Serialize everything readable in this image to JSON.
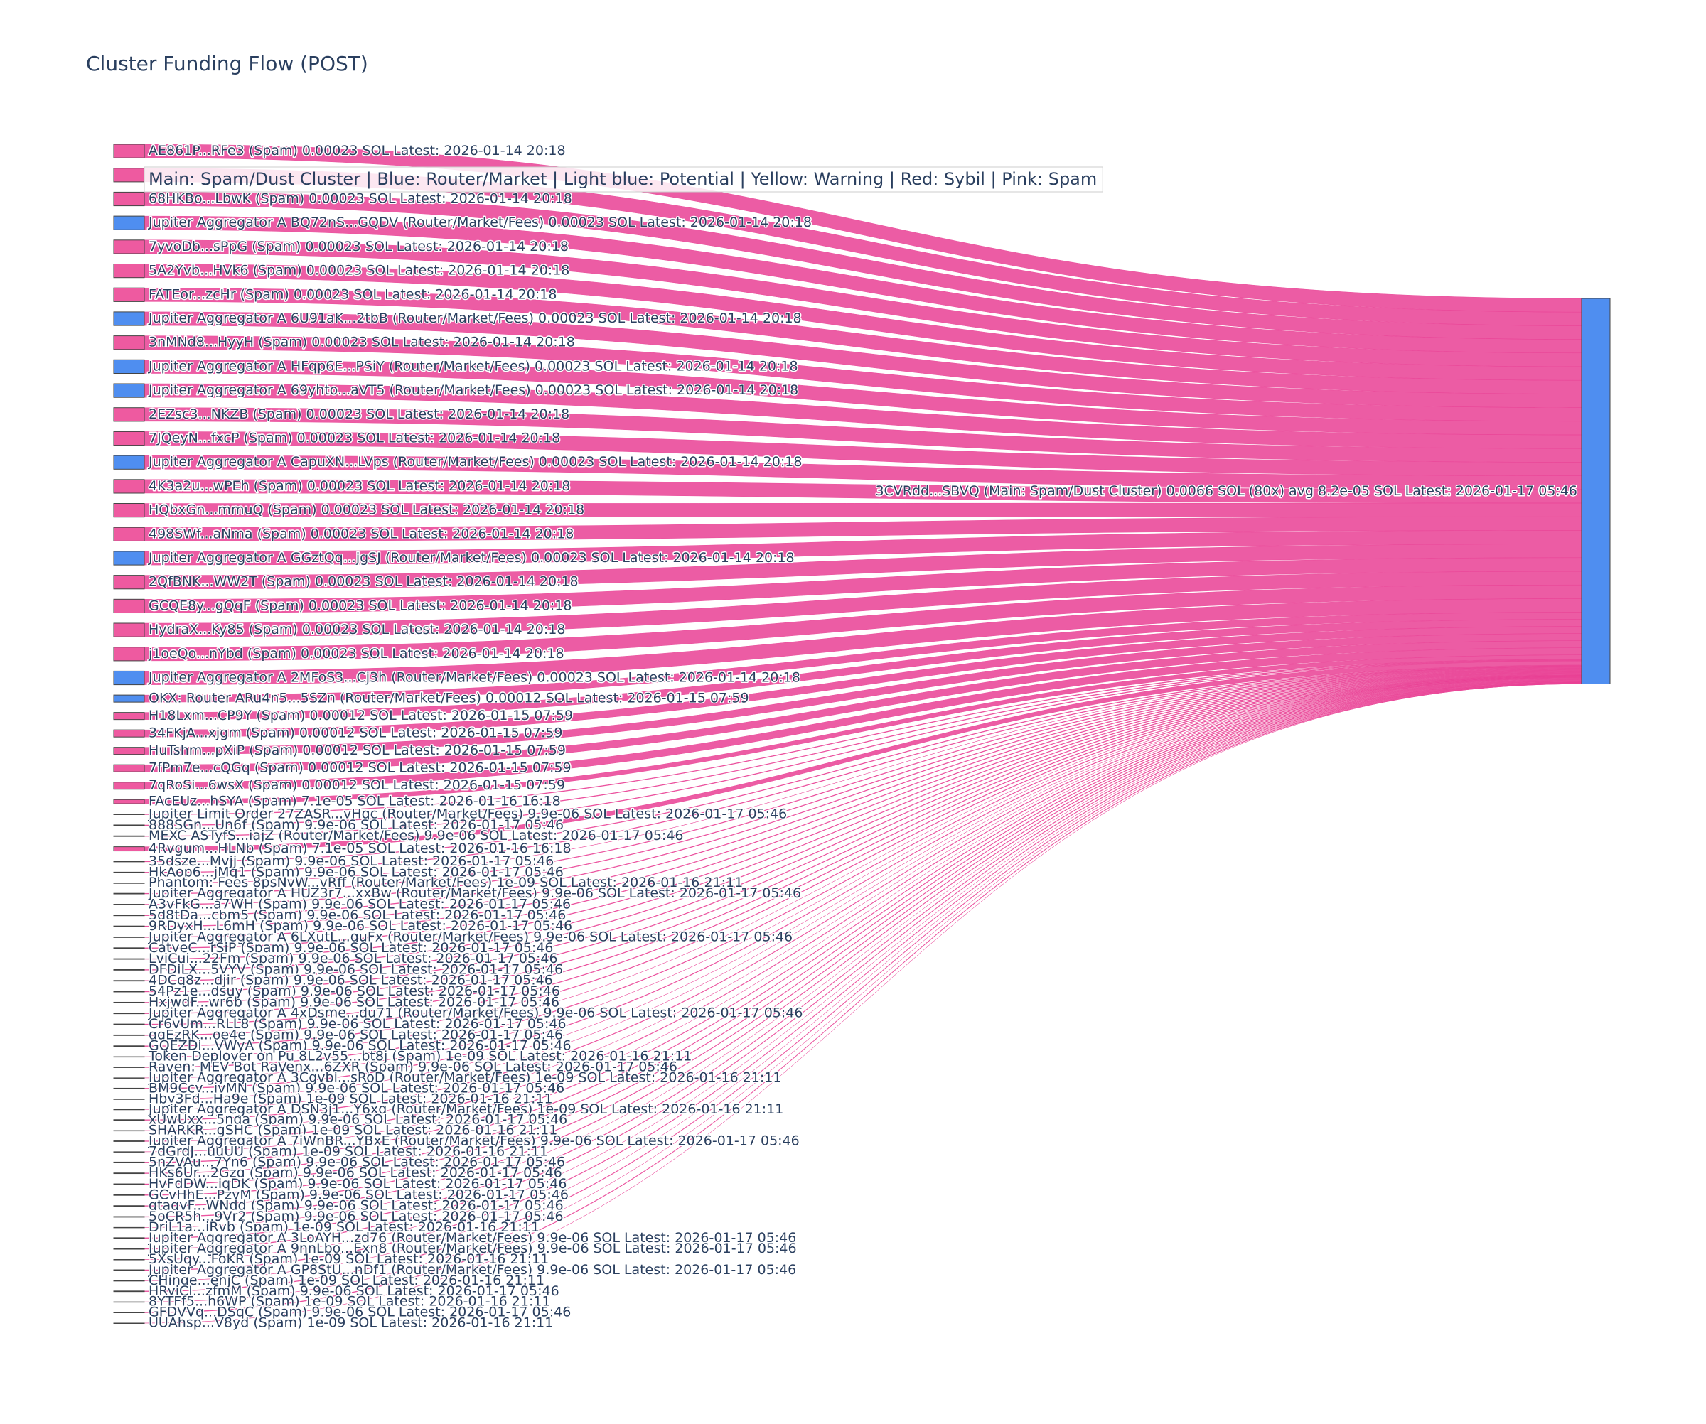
{
  "chart_data": {
    "type": "sankey",
    "title": "Cluster Funding Flow (POST)",
    "annotation": "Main: Spam/Dust Cluster  |  Blue: Router/Market | Light blue: Potential | Yellow: Warning | Red: Sybil | Pink: Spam",
    "link_color": "rgba(233,64,148,0.85)",
    "nodes": [
      {
        "label": "3CVRdd...SBVQ (Main: Spam/Dust Cluster) 0.0066 SOL (80x) avg 8.2e-05 SOL Latest: 2026-01-17 05:46",
        "color": "#4f8ef0"
      },
      {
        "label": "AE861P...RFe3 (Spam) 0.00023 SOL Latest: 2026-01-14 20:18",
        "color": "#ee5aa0"
      },
      {
        "label": null,
        "color": "#ee5aa0"
      },
      {
        "label": "68HKBo...LbwK (Spam) 0.00023 SOL Latest: 2026-01-14 20:18",
        "color": "#ee5aa0"
      },
      {
        "label": "Jupiter Aggregator A BQ72nS...GQDV (Router/Market/Fees) 0.00023 SOL Latest: 2026-01-14 20:18",
        "color": "#4f8ef0"
      },
      {
        "label": "7yvoDb...sPpG (Spam) 0.00023 SOL Latest: 2026-01-14 20:18",
        "color": "#ee5aa0"
      },
      {
        "label": "5A2Yvb...HVk6 (Spam) 0.00023 SOL Latest: 2026-01-14 20:18",
        "color": "#ee5aa0"
      },
      {
        "label": "FATEor...zcHr (Spam) 0.00023 SOL Latest: 2026-01-14 20:18",
        "color": "#ee5aa0"
      },
      {
        "label": "Jupiter Aggregator A 6U91aK...2tbB (Router/Market/Fees) 0.00023 SOL Latest: 2026-01-14 20:18",
        "color": "#4f8ef0"
      },
      {
        "label": "3nMNd8...HyyH (Spam) 0.00023 SOL Latest: 2026-01-14 20:18",
        "color": "#ee5aa0"
      },
      {
        "label": "Jupiter Aggregator A HFqp6E...PSiY (Router/Market/Fees) 0.00023 SOL Latest: 2026-01-14 20:18",
        "color": "#4f8ef0"
      },
      {
        "label": "Jupiter Aggregator A 69yhto...aVT5 (Router/Market/Fees) 0.00023 SOL Latest: 2026-01-14 20:18",
        "color": "#4f8ef0"
      },
      {
        "label": "2EZsc3...NKZB (Spam) 0.00023 SOL Latest: 2026-01-14 20:18",
        "color": "#ee5aa0"
      },
      {
        "label": "7JQeyN...fxcP (Spam) 0.00023 SOL Latest: 2026-01-14 20:18",
        "color": "#ee5aa0"
      },
      {
        "label": "Jupiter Aggregator A CapuXN...LVps (Router/Market/Fees) 0.00023 SOL Latest: 2026-01-14 20:18",
        "color": "#4f8ef0"
      },
      {
        "label": "4K3a2u...wPEh (Spam) 0.00023 SOL Latest: 2026-01-14 20:18",
        "color": "#ee5aa0"
      },
      {
        "label": "HQbxGn...mmuQ (Spam) 0.00023 SOL Latest: 2026-01-14 20:18",
        "color": "#ee5aa0"
      },
      {
        "label": "498SWf...aNma (Spam) 0.00023 SOL Latest: 2026-01-14 20:18",
        "color": "#ee5aa0"
      },
      {
        "label": "Jupiter Aggregator A GGztQq...jgSJ (Router/Market/Fees) 0.00023 SOL Latest: 2026-01-14 20:18",
        "color": "#4f8ef0"
      },
      {
        "label": "2QfBNK...WW2T (Spam) 0.00023 SOL Latest: 2026-01-14 20:18",
        "color": "#ee5aa0"
      },
      {
        "label": "GCQE8y...gQqF (Spam) 0.00023 SOL Latest: 2026-01-14 20:18",
        "color": "#ee5aa0"
      },
      {
        "label": "HydraX...Ky85 (Spam) 0.00023 SOL Latest: 2026-01-14 20:18",
        "color": "#ee5aa0"
      },
      {
        "label": "j1oeQo...nYbd (Spam) 0.00023 SOL Latest: 2026-01-14 20:18",
        "color": "#ee5aa0"
      },
      {
        "label": "Jupiter Aggregator A 2MFoS3...Cj3h (Router/Market/Fees) 0.00023 SOL Latest: 2026-01-14 20:18",
        "color": "#4f8ef0"
      },
      {
        "label": "OKX: Router ARu4n5...5SZn (Router/Market/Fees) 0.00012 SOL Latest: 2026-01-15 07:59",
        "color": "#4f8ef0"
      },
      {
        "label": "H18Lxm...CP9Y (Spam) 0.00012 SOL Latest: 2026-01-15 07:59",
        "color": "#ee5aa0"
      },
      {
        "label": "34FKjA...xjgm (Spam) 0.00012 SOL Latest: 2026-01-15 07:59",
        "color": "#ee5aa0"
      },
      {
        "label": "HuTshm...pXiP (Spam) 0.00012 SOL Latest: 2026-01-15 07:59",
        "color": "#ee5aa0"
      },
      {
        "label": "7fPm7e...cQGq (Spam) 0.00012 SOL Latest: 2026-01-15 07:59",
        "color": "#ee5aa0"
      },
      {
        "label": "7qRoSi...6wsX (Spam) 0.00012 SOL Latest: 2026-01-15 07:59",
        "color": "#ee5aa0"
      },
      {
        "label": "FAcEUz...hSYA (Spam) 7.1e-05 SOL Latest: 2026-01-16 16:18",
        "color": "#ee5aa0"
      },
      {
        "label": "Jupiter Limit Order  27ZASR...vHqc (Router/Market/Fees) 9.9e-06 SOL Latest: 2026-01-17 05:46",
        "color": "#4f8ef0"
      },
      {
        "label": "888SGn...Un6f (Spam) 9.9e-06 SOL Latest: 2026-01-17 05:46",
        "color": "#ee5aa0"
      },
      {
        "label": "MEXC ASTyfS...iajZ (Router/Market/Fees) 9.9e-06 SOL Latest: 2026-01-17 05:46",
        "color": "#4f8ef0"
      },
      {
        "label": "4Rvgum...HLNb (Spam) 7.1e-05 SOL Latest: 2026-01-16 16:18",
        "color": "#ee5aa0"
      },
      {
        "label": "35dsze...Mvjj (Spam) 9.9e-06 SOL Latest: 2026-01-17 05:46",
        "color": "#ee5aa0"
      },
      {
        "label": "HkAop6...jMq1 (Spam) 9.9e-06 SOL Latest: 2026-01-17 05:46",
        "color": "#ee5aa0"
      },
      {
        "label": "Phantom: Fees 8psNvW...vRff (Router/Market/Fees) 1e-09 SOL Latest: 2026-01-16 21:11",
        "color": "#4f8ef0"
      },
      {
        "label": "Jupiter Aggregator A HUZ3r7...xxBw (Router/Market/Fees) 9.9e-06 SOL Latest: 2026-01-17 05:46",
        "color": "#4f8ef0"
      },
      {
        "label": "A3vFkG...a7WH (Spam) 9.9e-06 SOL Latest: 2026-01-17 05:46",
        "color": "#ee5aa0"
      },
      {
        "label": "5d8tDa...cbm5 (Spam) 9.9e-06 SOL Latest: 2026-01-17 05:46",
        "color": "#ee5aa0"
      },
      {
        "label": "9RDyxH...L6mH (Spam) 9.9e-06 SOL Latest: 2026-01-17 05:46",
        "color": "#ee5aa0"
      },
      {
        "label": "Jupiter Aggregator A 6LXutL...quFx (Router/Market/Fees) 9.9e-06 SOL Latest: 2026-01-17 05:46",
        "color": "#4f8ef0"
      },
      {
        "label": "CatyeC...rSiP (Spam) 9.9e-06 SOL Latest: 2026-01-17 05:46",
        "color": "#ee5aa0"
      },
      {
        "label": "LviCui...22Fm (Spam) 9.9e-06 SOL Latest: 2026-01-17 05:46",
        "color": "#ee5aa0"
      },
      {
        "label": "DFDiLX...5VYV (Spam) 9.9e-06 SOL Latest: 2026-01-17 05:46",
        "color": "#ee5aa0"
      },
      {
        "label": "4DCq8z...djir (Spam) 9.9e-06 SOL Latest: 2026-01-17 05:46",
        "color": "#ee5aa0"
      },
      {
        "label": "54Pz1e...dsuy (Spam) 9.9e-06 SOL Latest: 2026-01-17 05:46",
        "color": "#ee5aa0"
      },
      {
        "label": "HxjwdF...wr6b (Spam) 9.9e-06 SOL Latest: 2026-01-17 05:46",
        "color": "#ee5aa0"
      },
      {
        "label": "Jupiter Aggregator A 4xDsme...du71 (Router/Market/Fees) 9.9e-06 SOL Latest: 2026-01-17 05:46",
        "color": "#4f8ef0"
      },
      {
        "label": "Cr6vUm...RLL8 (Spam) 9.9e-06 SOL Latest: 2026-01-17 05:46",
        "color": "#ee5aa0"
      },
      {
        "label": "qqEzRK...oe4e (Spam) 9.9e-06 SOL Latest: 2026-01-17 05:46",
        "color": "#ee5aa0"
      },
      {
        "label": "GQEZDi...VWyA (Spam) 9.9e-06 SOL Latest: 2026-01-17 05:46",
        "color": "#ee5aa0"
      },
      {
        "label": "Token Deployer on Pu 8L2v55...bt8j (Spam) 1e-09 SOL Latest: 2026-01-16 21:11",
        "color": "#ee5aa0"
      },
      {
        "label": "Raven: MEV Bot RaVenx...6ZXR (Spam) 9.9e-06 SOL Latest: 2026-01-17 05:46",
        "color": "#ee5aa0"
      },
      {
        "label": "Jupiter Aggregator A 3Cgvbi...sRoD (Router/Market/Fees) 1e-09 SOL Latest: 2026-01-16 21:11",
        "color": "#4f8ef0"
      },
      {
        "label": "BM9Ccy...jvMN (Spam) 9.9e-06 SOL Latest: 2026-01-17 05:46",
        "color": "#ee5aa0"
      },
      {
        "label": "Hby3Fd...Ha9e (Spam) 1e-09 SOL Latest: 2026-01-16 21:11",
        "color": "#ee5aa0"
      },
      {
        "label": "Jupiter Aggregator A DSN3j1...Y6xq (Router/Market/Fees) 1e-09 SOL Latest: 2026-01-16 21:11",
        "color": "#4f8ef0"
      },
      {
        "label": "xUwUxx...5nqa (Spam) 9.9e-06 SOL Latest: 2026-01-17 05:46",
        "color": "#ee5aa0"
      },
      {
        "label": "SHARKR...gSHC (Spam) 1e-09 SOL Latest: 2026-01-16 21:11",
        "color": "#ee5aa0"
      },
      {
        "label": "Jupiter Aggregator A 7iWnBR...YBxE (Router/Market/Fees) 9.9e-06 SOL Latest: 2026-01-17 05:46",
        "color": "#4f8ef0"
      },
      {
        "label": "7dGrdJ...uuUU (Spam) 1e-09 SOL Latest: 2026-01-16 21:11",
        "color": "#ee5aa0"
      },
      {
        "label": "5nZVAu...7Yn6 (Spam) 9.9e-06 SOL Latest: 2026-01-17 05:46",
        "color": "#ee5aa0"
      },
      {
        "label": "HKs6Ur...2Gzq (Spam) 9.9e-06 SOL Latest: 2026-01-17 05:46",
        "color": "#ee5aa0"
      },
      {
        "label": "HvFdDW...iqDK (Spam) 9.9e-06 SOL Latest: 2026-01-17 05:46",
        "color": "#ee5aa0"
      },
      {
        "label": "GCvHhE...PzvM (Spam) 9.9e-06 SOL Latest: 2026-01-17 05:46",
        "color": "#ee5aa0"
      },
      {
        "label": "qtaqvF...WNdd (Spam) 9.9e-06 SOL Latest: 2026-01-17 05:46",
        "color": "#ee5aa0"
      },
      {
        "label": "5oCR5h...9Vr2 (Spam) 9.9e-06 SOL Latest: 2026-01-17 05:46",
        "color": "#ee5aa0"
      },
      {
        "label": "DriL1a...iRvb (Spam) 1e-09 SOL Latest: 2026-01-16 21:11",
        "color": "#ee5aa0"
      },
      {
        "label": "Jupiter Aggregator A 3LoAYH...zd76 (Router/Market/Fees) 9.9e-06 SOL Latest: 2026-01-17 05:46",
        "color": "#4f8ef0"
      },
      {
        "label": "Jupiter Aggregator A 9nnLbo...Exn8 (Router/Market/Fees) 9.9e-06 SOL Latest: 2026-01-17 05:46",
        "color": "#4f8ef0"
      },
      {
        "label": "5XsUqy...FoKR (Spam) 1e-09 SOL Latest: 2026-01-16 21:11",
        "color": "#ee5aa0"
      },
      {
        "label": "Jupiter Aggregator A GP8StU...nDf1 (Router/Market/Fees) 9.9e-06 SOL Latest: 2026-01-17 05:46",
        "color": "#4f8ef0"
      },
      {
        "label": "CHinge...enjC (Spam) 1e-09 SOL Latest: 2026-01-16 21:11",
        "color": "#ee5aa0"
      },
      {
        "label": "HRyiCJ...zfmM (Spam) 9.9e-06 SOL Latest: 2026-01-17 05:46",
        "color": "#ee5aa0"
      },
      {
        "label": "8YTFf5...h6WP (Spam) 1e-09 SOL Latest: 2026-01-16 21:11",
        "color": "#ee5aa0"
      },
      {
        "label": "GFDVVq...DSqC (Spam) 9.9e-06 SOL Latest: 2026-01-17 05:46",
        "color": "#ee5aa0"
      },
      {
        "label": "UUAhsp...V8yd (Spam) 1e-09 SOL Latest: 2026-01-16 21:11",
        "color": "#ee5aa0"
      }
    ],
    "links": [
      {
        "source": 1,
        "target": 0,
        "value": 0.00023
      },
      {
        "source": 2,
        "target": 0,
        "value": 0.00023
      },
      {
        "source": 3,
        "target": 0,
        "value": 0.00023
      },
      {
        "source": 4,
        "target": 0,
        "value": 0.00023
      },
      {
        "source": 5,
        "target": 0,
        "value": 0.00023
      },
      {
        "source": 6,
        "target": 0,
        "value": 0.00023
      },
      {
        "source": 7,
        "target": 0,
        "value": 0.00023
      },
      {
        "source": 8,
        "target": 0,
        "value": 0.00023
      },
      {
        "source": 9,
        "target": 0,
        "value": 0.00023
      },
      {
        "source": 10,
        "target": 0,
        "value": 0.00023
      },
      {
        "source": 11,
        "target": 0,
        "value": 0.00023
      },
      {
        "source": 12,
        "target": 0,
        "value": 0.00023
      },
      {
        "source": 13,
        "target": 0,
        "value": 0.00023
      },
      {
        "source": 14,
        "target": 0,
        "value": 0.00023
      },
      {
        "source": 15,
        "target": 0,
        "value": 0.00023
      },
      {
        "source": 16,
        "target": 0,
        "value": 0.00023
      },
      {
        "source": 17,
        "target": 0,
        "value": 0.00023
      },
      {
        "source": 18,
        "target": 0,
        "value": 0.00023
      },
      {
        "source": 19,
        "target": 0,
        "value": 0.00023
      },
      {
        "source": 20,
        "target": 0,
        "value": 0.00023
      },
      {
        "source": 21,
        "target": 0,
        "value": 0.00023
      },
      {
        "source": 22,
        "target": 0,
        "value": 0.00023
      },
      {
        "source": 23,
        "target": 0,
        "value": 0.00023
      },
      {
        "source": 24,
        "target": 0,
        "value": 0.00012
      },
      {
        "source": 25,
        "target": 0,
        "value": 0.00012
      },
      {
        "source": 26,
        "target": 0,
        "value": 0.00012
      },
      {
        "source": 27,
        "target": 0,
        "value": 0.00012
      },
      {
        "source": 28,
        "target": 0,
        "value": 0.00012
      },
      {
        "source": 29,
        "target": 0,
        "value": 0.00012
      },
      {
        "source": 30,
        "target": 0,
        "value": 7.1e-05
      },
      {
        "source": 31,
        "target": 0,
        "value": 9.9e-06
      },
      {
        "source": 32,
        "target": 0,
        "value": 9.9e-06
      },
      {
        "source": 33,
        "target": 0,
        "value": 9.9e-06
      },
      {
        "source": 34,
        "target": 0,
        "value": 7.1e-05
      },
      {
        "source": 35,
        "target": 0,
        "value": 9.9e-06
      },
      {
        "source": 36,
        "target": 0,
        "value": 9.9e-06
      },
      {
        "source": 37,
        "target": 0,
        "value": 1e-09
      },
      {
        "source": 38,
        "target": 0,
        "value": 9.9e-06
      },
      {
        "source": 39,
        "target": 0,
        "value": 9.9e-06
      },
      {
        "source": 40,
        "target": 0,
        "value": 9.9e-06
      },
      {
        "source": 41,
        "target": 0,
        "value": 9.9e-06
      },
      {
        "source": 42,
        "target": 0,
        "value": 9.9e-06
      },
      {
        "source": 43,
        "target": 0,
        "value": 9.9e-06
      },
      {
        "source": 44,
        "target": 0,
        "value": 9.9e-06
      },
      {
        "source": 45,
        "target": 0,
        "value": 9.9e-06
      },
      {
        "source": 46,
        "target": 0,
        "value": 9.9e-06
      },
      {
        "source": 47,
        "target": 0,
        "value": 9.9e-06
      },
      {
        "source": 48,
        "target": 0,
        "value": 9.9e-06
      },
      {
        "source": 49,
        "target": 0,
        "value": 9.9e-06
      },
      {
        "source": 50,
        "target": 0,
        "value": 9.9e-06
      },
      {
        "source": 51,
        "target": 0,
        "value": 9.9e-06
      },
      {
        "source": 52,
        "target": 0,
        "value": 9.9e-06
      },
      {
        "source": 53,
        "target": 0,
        "value": 1e-09
      },
      {
        "source": 54,
        "target": 0,
        "value": 9.9e-06
      },
      {
        "source": 55,
        "target": 0,
        "value": 1e-09
      },
      {
        "source": 56,
        "target": 0,
        "value": 9.9e-06
      },
      {
        "source": 57,
        "target": 0,
        "value": 1e-09
      },
      {
        "source": 58,
        "target": 0,
        "value": 1e-09
      },
      {
        "source": 59,
        "target": 0,
        "value": 9.9e-06
      },
      {
        "source": 60,
        "target": 0,
        "value": 1e-09
      },
      {
        "source": 61,
        "target": 0,
        "value": 9.9e-06
      },
      {
        "source": 62,
        "target": 0,
        "value": 1e-09
      },
      {
        "source": 63,
        "target": 0,
        "value": 9.9e-06
      },
      {
        "source": 64,
        "target": 0,
        "value": 9.9e-06
      },
      {
        "source": 65,
        "target": 0,
        "value": 9.9e-06
      },
      {
        "source": 66,
        "target": 0,
        "value": 9.9e-06
      },
      {
        "source": 67,
        "target": 0,
        "value": 9.9e-06
      },
      {
        "source": 68,
        "target": 0,
        "value": 9.9e-06
      },
      {
        "source": 69,
        "target": 0,
        "value": 1e-09
      },
      {
        "source": 70,
        "target": 0,
        "value": 9.9e-06
      },
      {
        "source": 71,
        "target": 0,
        "value": 9.9e-06
      },
      {
        "source": 72,
        "target": 0,
        "value": 1e-09
      },
      {
        "source": 73,
        "target": 0,
        "value": 9.9e-06
      },
      {
        "source": 74,
        "target": 0,
        "value": 1e-09
      },
      {
        "source": 75,
        "target": 0,
        "value": 9.9e-06
      },
      {
        "source": 76,
        "target": 0,
        "value": 1e-09
      },
      {
        "source": 77,
        "target": 0,
        "value": 9.9e-06
      },
      {
        "source": 78,
        "target": 0,
        "value": 1e-09
      }
    ]
  }
}
